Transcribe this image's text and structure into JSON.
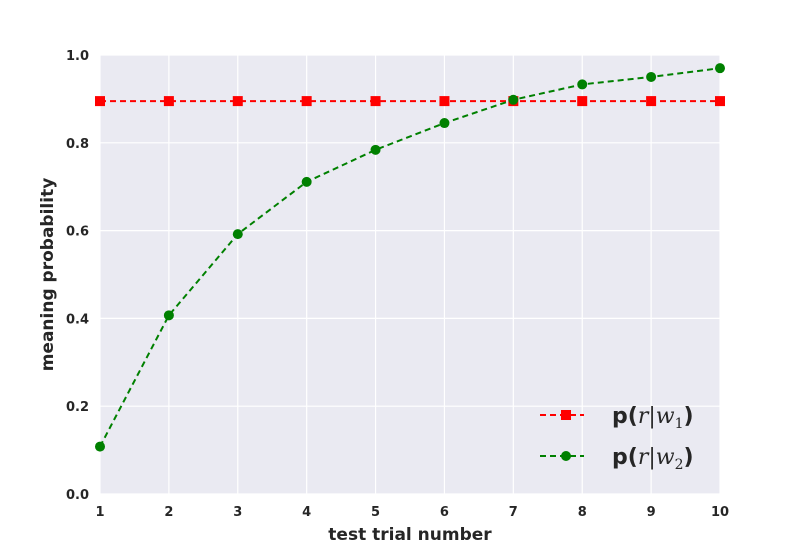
{
  "chart_data": {
    "type": "line",
    "title": "",
    "xlabel": "test trial number",
    "ylabel": "meaning probability",
    "xlim": [
      1,
      10
    ],
    "ylim": [
      0.0,
      1.0
    ],
    "xticks": [
      "1",
      "2",
      "3",
      "4",
      "5",
      "6",
      "7",
      "8",
      "9",
      "10"
    ],
    "yticks": [
      "0.0",
      "0.2",
      "0.4",
      "0.6",
      "0.8",
      "1.0"
    ],
    "grid": true,
    "legend_position": "bottom-right",
    "x": [
      1,
      2,
      3,
      4,
      5,
      6,
      7,
      8,
      9,
      10
    ],
    "series": [
      {
        "name": "p(r|w1)",
        "name_parts": {
          "prefix": "p(",
          "math": "r|w",
          "sub": "1",
          "suffix": ")"
        },
        "color": "#ff0000",
        "marker": "square",
        "linestyle": "dashed",
        "values": [
          0.895,
          0.895,
          0.895,
          0.895,
          0.895,
          0.895,
          0.895,
          0.895,
          0.895,
          0.895
        ]
      },
      {
        "name": "p(r|w2)",
        "name_parts": {
          "prefix": "p(",
          "math": "r|w",
          "sub": "2",
          "suffix": ")"
        },
        "color": "#008000",
        "marker": "circle",
        "linestyle": "dashed",
        "values": [
          0.108,
          0.407,
          0.592,
          0.711,
          0.784,
          0.845,
          0.898,
          0.933,
          0.95,
          0.97
        ]
      }
    ],
    "colors": {
      "plot_background": "#eaeaf2",
      "grid": "#ffffff",
      "text": "#262626"
    }
  }
}
